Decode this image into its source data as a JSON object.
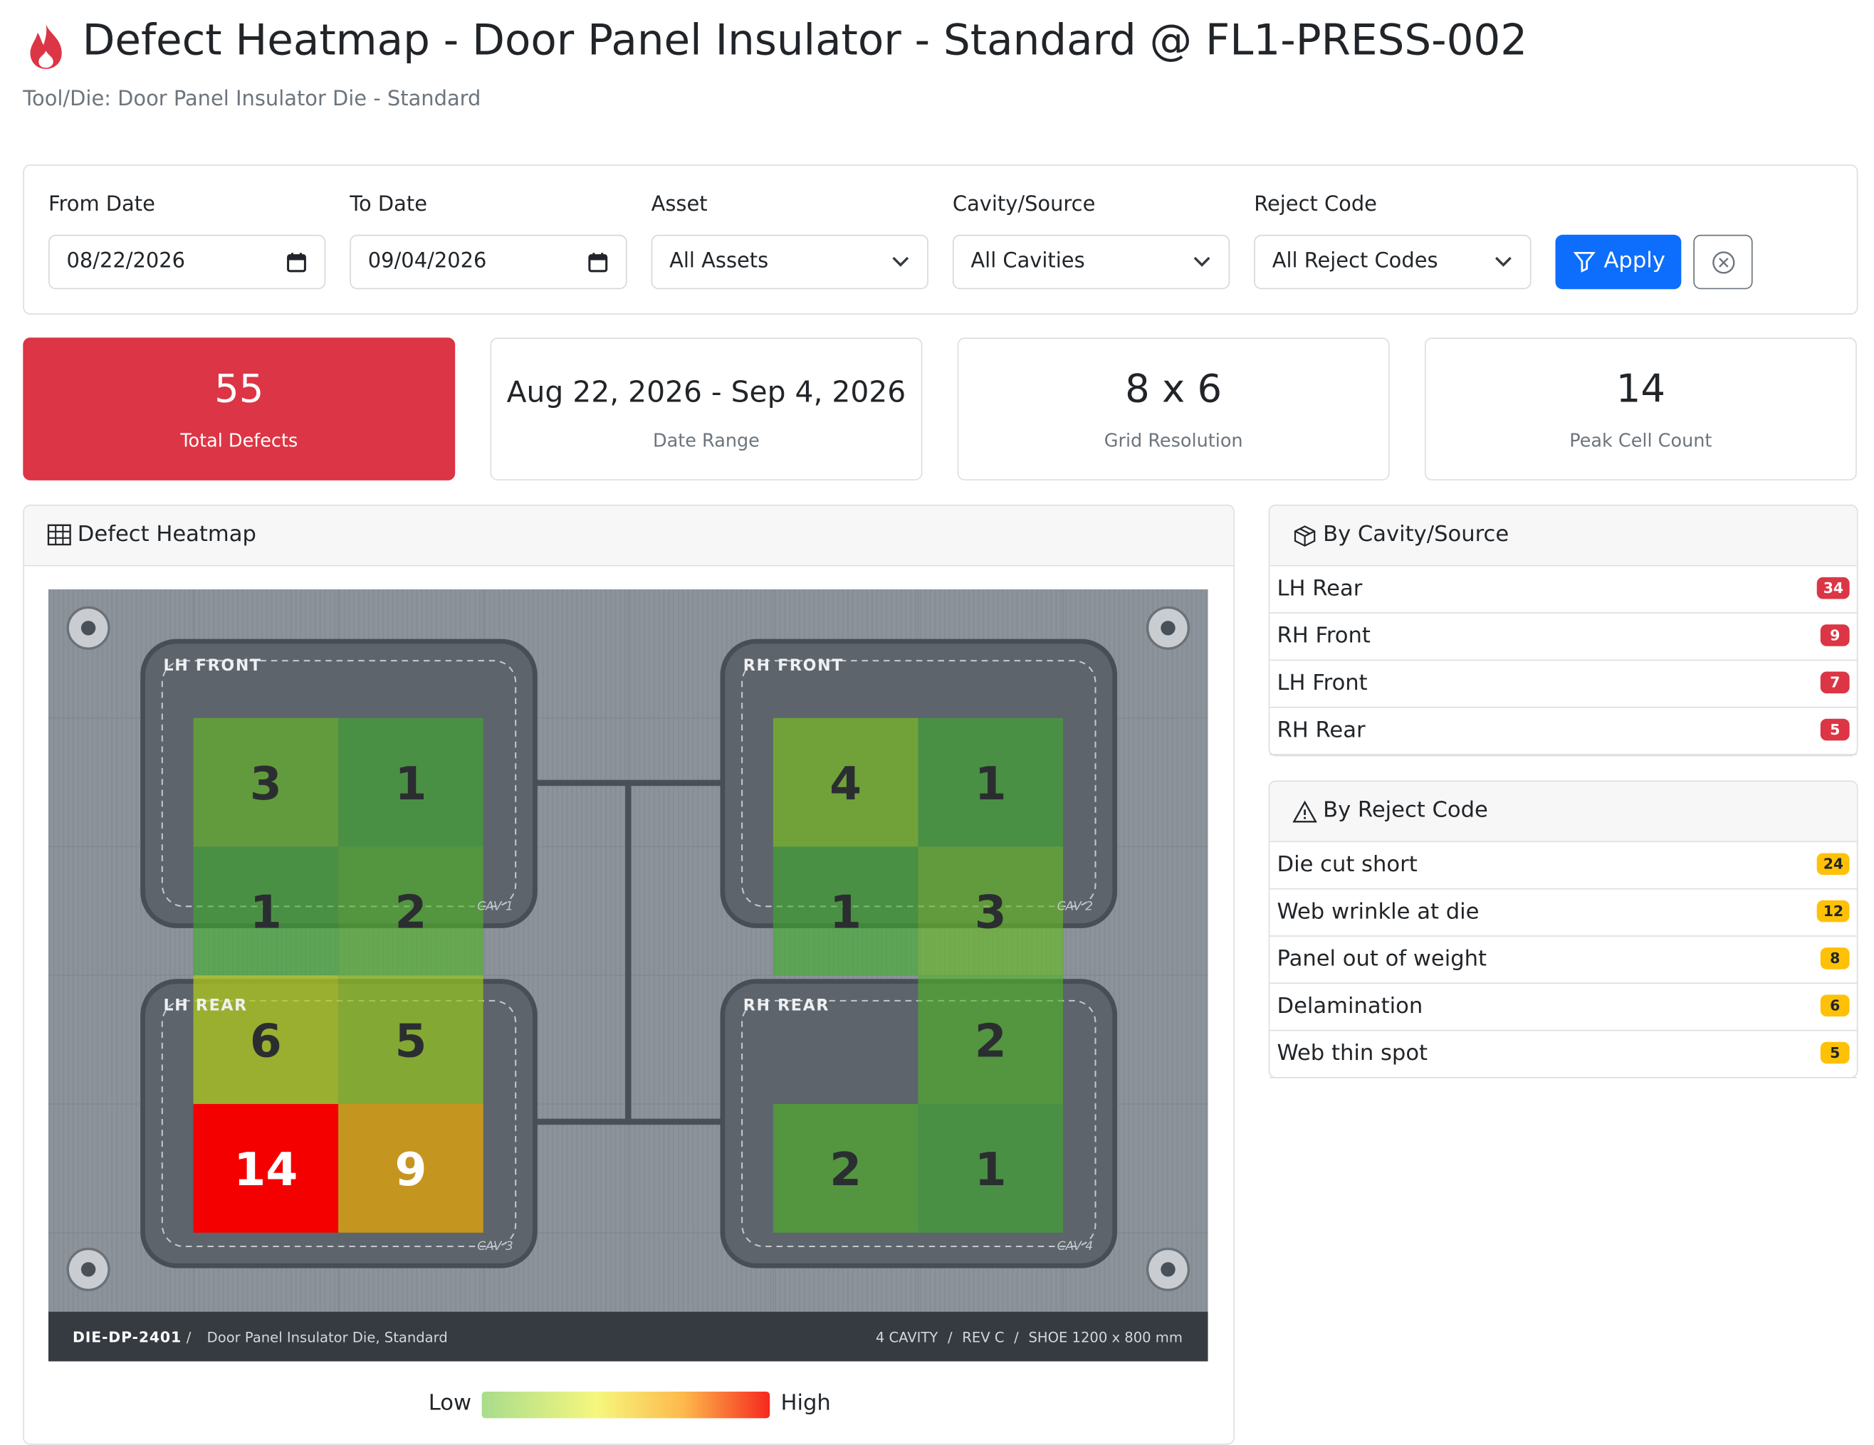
{
  "header": {
    "title": "Defect Heatmap - Door Panel Insulator - Standard @ FL1-PRESS-002",
    "subtitle": "Tool/Die: Door Panel Insulator Die - Standard"
  },
  "filters": {
    "from_date": {
      "label": "From Date",
      "value": "08/22/2026"
    },
    "to_date": {
      "label": "To Date",
      "value": "09/04/2026"
    },
    "asset": {
      "label": "Asset",
      "value": "All Assets"
    },
    "cavity": {
      "label": "Cavity/Source",
      "value": "All Cavities"
    },
    "reject_code": {
      "label": "Reject Code",
      "value": "All Reject Codes"
    },
    "apply": "Apply"
  },
  "stats": [
    {
      "value": 55,
      "label": "Total Defects"
    },
    {
      "value": "Aug 22, 2026 - Sep 4, 2026",
      "label": "Date Range"
    },
    {
      "value": "8 x 6",
      "label": "Grid Resolution"
    },
    {
      "value": 14,
      "label": "Peak Cell Count"
    }
  ],
  "heatmap": {
    "title": "Defect Heatmap",
    "grid": [
      [
        null,
        null,
        null,
        null,
        null,
        null,
        null,
        null
      ],
      [
        null,
        3,
        1,
        null,
        null,
        4,
        1,
        null
      ],
      [
        null,
        1,
        2,
        null,
        null,
        1,
        3,
        null
      ],
      [
        null,
        6,
        5,
        null,
        null,
        null,
        2,
        null
      ],
      [
        null,
        14,
        9,
        null,
        null,
        2,
        1,
        null
      ],
      [
        null,
        null,
        null,
        null,
        null,
        null,
        null,
        null
      ]
    ],
    "cavities": [
      {
        "name": "LH FRONT",
        "tag": "CAV 1"
      },
      {
        "name": "RH FRONT",
        "tag": "CAV 2"
      },
      {
        "name": "LH REAR",
        "tag": "CAV 3"
      },
      {
        "name": "RH REAR",
        "tag": "CAV 4"
      }
    ],
    "plate": {
      "id": "DIE-DP-2401",
      "description": "Door Panel Insulator Die, Standard",
      "specs": [
        "4 CAVITY",
        "REV C",
        "SHOE 1200 x 800 mm"
      ]
    },
    "legend": {
      "low": "Low",
      "high": "High"
    }
  },
  "by_cavity": {
    "title": "By Cavity/Source",
    "items": [
      {
        "name": "LH Rear",
        "count": 34
      },
      {
        "name": "RH Front",
        "count": 9
      },
      {
        "name": "LH Front",
        "count": 7
      },
      {
        "name": "RH Rear",
        "count": 5
      }
    ]
  },
  "by_reject_code": {
    "title": "By Reject Code",
    "items": [
      {
        "name": "Die cut short",
        "count": 24
      },
      {
        "name": "Web wrinkle at die",
        "count": 12
      },
      {
        "name": "Panel out of weight",
        "count": 8
      },
      {
        "name": "Delamination",
        "count": 6
      },
      {
        "name": "Web thin spot",
        "count": 5
      }
    ]
  }
}
